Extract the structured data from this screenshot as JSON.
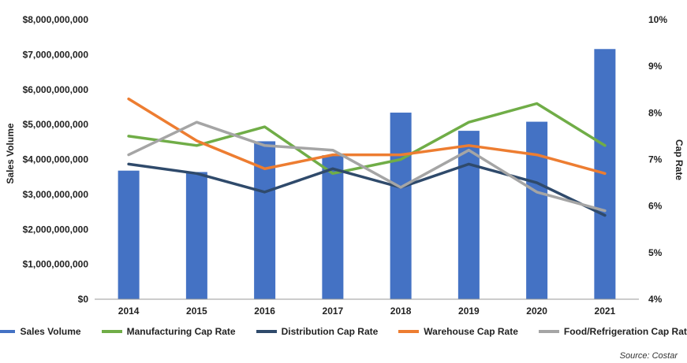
{
  "chart_data": {
    "type": "bar",
    "categories": [
      "2014",
      "2015",
      "2016",
      "2017",
      "2018",
      "2019",
      "2020",
      "2021"
    ],
    "left_axis": {
      "label": "Sales Volume",
      "ylim": [
        0,
        8000000000
      ],
      "tick_labels": [
        "$0",
        "$1,000,000,000",
        "$2,000,000,000",
        "$3,000,000,000",
        "$4,000,000,000",
        "$5,000,000,000",
        "$6,000,000,000",
        "$7,000,000,000",
        "$8,000,000,000"
      ]
    },
    "right_axis": {
      "label": "Cap Rate",
      "ylim": [
        4,
        10
      ],
      "tick_labels": [
        "4%",
        "5%",
        "6%",
        "7%",
        "8%",
        "9%",
        "10%"
      ]
    },
    "series": [
      {
        "name": "Sales Volume",
        "type": "bar",
        "axis": "left",
        "color": "#4472C4",
        "values": [
          3680000000,
          3640000000,
          4520000000,
          4120000000,
          5340000000,
          4820000000,
          5080000000,
          7160000000
        ]
      },
      {
        "name": "Manufacturing Cap Rate",
        "type": "line",
        "axis": "right",
        "color": "#70AD47",
        "values": [
          7.5,
          7.3,
          7.7,
          6.7,
          7.0,
          7.8,
          8.2,
          7.3
        ]
      },
      {
        "name": "Distribution Cap Rate",
        "type": "line",
        "axis": "right",
        "color": "#2F4A6B",
        "values": [
          6.9,
          6.7,
          6.3,
          6.8,
          6.4,
          6.9,
          6.5,
          5.8
        ]
      },
      {
        "name": "Warehouse Cap Rate",
        "type": "line",
        "axis": "right",
        "color": "#ED7D31",
        "values": [
          8.3,
          7.4,
          6.8,
          7.1,
          7.1,
          7.3,
          7.1,
          6.7
        ]
      },
      {
        "name": "Food/Refrigeration Cap Rate",
        "type": "line",
        "axis": "right",
        "color": "#A5A5A5",
        "values": [
          7.1,
          7.8,
          7.3,
          7.2,
          6.4,
          7.2,
          6.3,
          5.9
        ]
      }
    ],
    "grid": false,
    "legend_position": "bottom"
  },
  "source": "Source: Costar"
}
